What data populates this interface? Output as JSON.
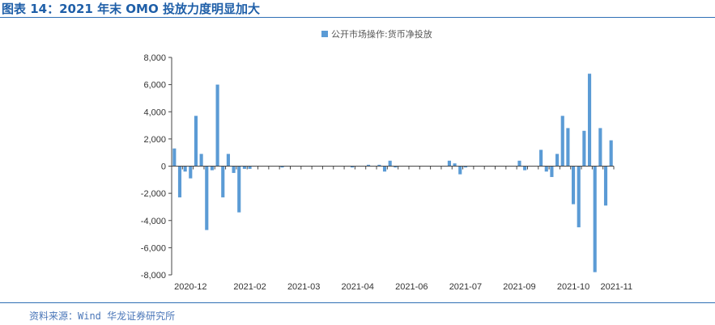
{
  "figure": {
    "title": "图表 14：2021 年末 OMO 投放力度明显加大",
    "source": "资料来源：Wind 华龙证券研究所"
  },
  "colors": {
    "bar": "#5b9bd5",
    "rule": "#2f6fb5",
    "title": "#1f5fa8"
  },
  "chart_data": {
    "type": "bar",
    "legend": "公开市场操作:货币净投放",
    "legend_position": "top-center",
    "grid": false,
    "ylim": [
      -8000,
      8000
    ],
    "yticks": [
      "8,000",
      "6,000",
      "4,000",
      "2,000",
      "0",
      "-2,000",
      "-4,000",
      "-6,000",
      "-8,000"
    ],
    "ytick_values": [
      8000,
      6000,
      4000,
      2000,
      0,
      -2000,
      -4000,
      -6000,
      -8000
    ],
    "xtick_labels": [
      {
        "label": "2020-12",
        "index": 3
      },
      {
        "label": "2021-02",
        "index": 14
      },
      {
        "label": "2021-03",
        "index": 24
      },
      {
        "label": "2021-04",
        "index": 34
      },
      {
        "label": "2021-06",
        "index": 44
      },
      {
        "label": "2021-07",
        "index": 54
      },
      {
        "label": "2021-09",
        "index": 64
      },
      {
        "label": "2021-10",
        "index": 74
      },
      {
        "label": "2021-11",
        "index": 82
      }
    ],
    "values": [
      1300,
      -2300,
      -400,
      -900,
      3700,
      900,
      -4700,
      -300,
      6000,
      -2300,
      900,
      -500,
      -3400,
      -200,
      -200,
      0,
      0,
      0,
      0,
      0,
      -100,
      0,
      0,
      0,
      0,
      0,
      0,
      0,
      0,
      0,
      0,
      0,
      0,
      -100,
      0,
      0,
      100,
      0,
      100,
      -400,
      400,
      -100,
      0,
      0,
      0,
      0,
      0,
      0,
      0,
      0,
      0,
      400,
      200,
      -600,
      -100,
      0,
      0,
      0,
      0,
      0,
      0,
      0,
      0,
      0,
      400,
      -300,
      0,
      0,
      1200,
      -400,
      -800,
      900,
      3700,
      2800,
      -2800,
      -4500,
      2600,
      6800,
      -7800,
      2800,
      -2900,
      1900
    ]
  }
}
